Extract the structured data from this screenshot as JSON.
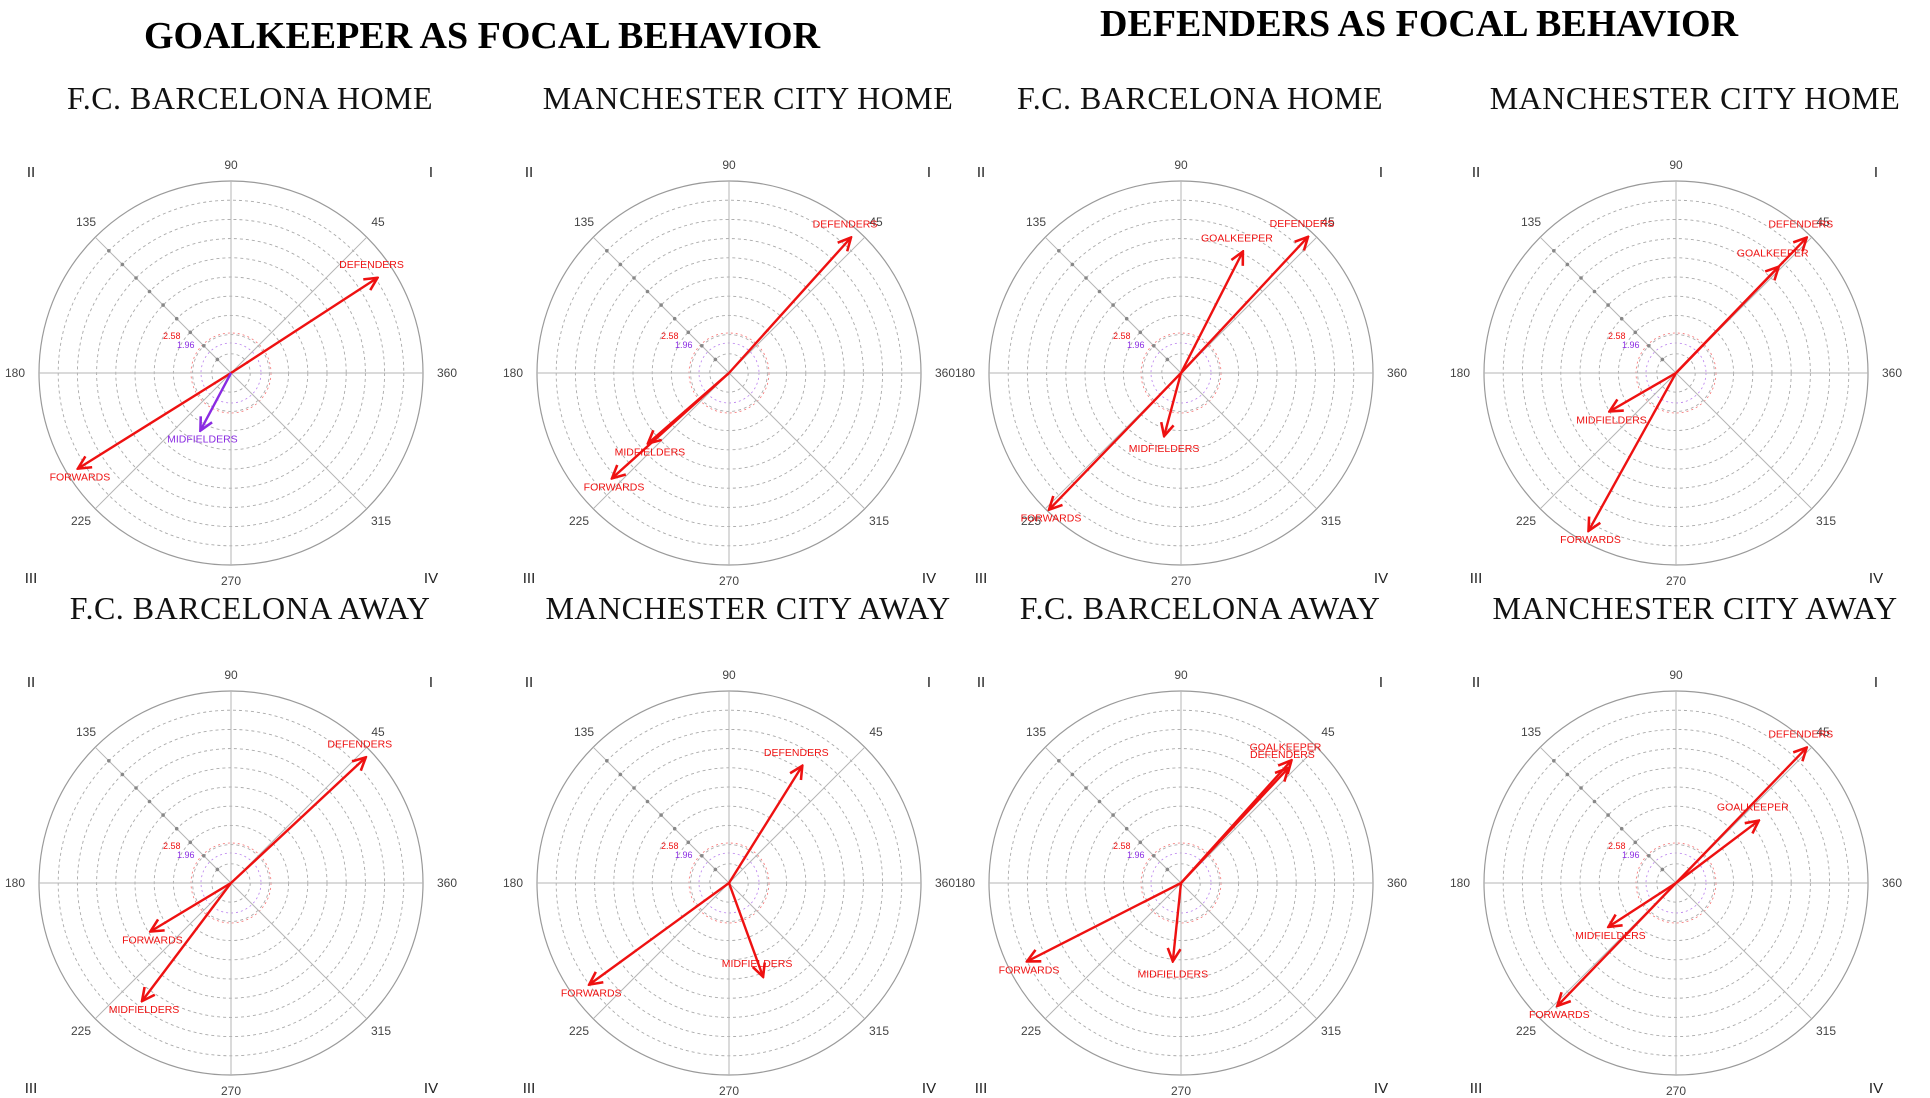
{
  "section_titles": {
    "left": "GOALKEEPER AS FOCAL BEHAVIOR",
    "right": "DEFENDERS AS FOCAL BEHAVIOR"
  },
  "colors": {
    "significant": "#ee1111",
    "nonsignificant": "#8a2be2",
    "circle": "#9a9a9a",
    "dotted": "#aaaaaa",
    "ring196": "#8a2be2",
    "ring258": "#ee1111"
  },
  "axis_angle_labels": [
    "90",
    "45",
    "180",
    "360",
    "225",
    "315",
    "270",
    "135"
  ],
  "quadrant_labels": [
    "I",
    "II",
    "III",
    "IV"
  ],
  "ring_labels": [
    "2.58",
    "1.96"
  ],
  "chart_data": [
    {
      "type": "polar",
      "group": "GOALKEEPER AS FOCAL BEHAVIOR",
      "title": "F.C. BARCELONA HOME",
      "vectors": [
        {
          "label": "DEFENDERS",
          "angle": 33,
          "length": 0.91,
          "significant": true
        },
        {
          "label": "FORWARDS",
          "angle": 212,
          "length": 0.94,
          "significant": true
        },
        {
          "label": "MIDFIELDERS",
          "angle": 242,
          "length": 0.34,
          "significant": false
        }
      ]
    },
    {
      "type": "polar",
      "group": "GOALKEEPER AS FOCAL BEHAVIOR",
      "title": "MANCHESTER CITY HOME",
      "vectors": [
        {
          "label": "DEFENDERS",
          "angle": 48,
          "length": 0.95,
          "significant": true
        },
        {
          "label": "MIDFIELDERS",
          "angle": 221,
          "length": 0.56,
          "significant": true
        },
        {
          "label": "FORWARDS",
          "angle": 222,
          "length": 0.82,
          "significant": true
        }
      ]
    },
    {
      "type": "polar",
      "group": "DEFENDERS AS FOCAL BEHAVIOR",
      "title": "F.C. BARCELONA HOME",
      "vectors": [
        {
          "label": "GOALKEEPER",
          "angle": 63,
          "length": 0.71,
          "significant": true
        },
        {
          "label": "DEFENDERS",
          "angle": 47,
          "length": 0.97,
          "significant": true
        },
        {
          "label": "MIDFIELDERS",
          "angle": 255,
          "length": 0.34,
          "significant": true
        },
        {
          "label": "FORWARDS",
          "angle": 226,
          "length": 0.99,
          "significant": true
        }
      ]
    },
    {
      "type": "polar",
      "group": "DEFENDERS AS FOCAL BEHAVIOR",
      "title": "MANCHESTER CITY HOME",
      "vectors": [
        {
          "label": "DEFENDERS",
          "angle": 46,
          "length": 0.98,
          "significant": true
        },
        {
          "label": "GOALKEEPER",
          "angle": 46,
          "length": 0.77,
          "significant": true
        },
        {
          "label": "MIDFIELDERS",
          "angle": 210,
          "length": 0.4,
          "significant": true
        },
        {
          "label": "FORWARDS",
          "angle": 241,
          "length": 0.94,
          "significant": true
        }
      ]
    },
    {
      "type": "polar",
      "group": "GOALKEEPER AS FOCAL BEHAVIOR",
      "title": "F.C. BARCELONA AWAY",
      "vectors": [
        {
          "label": "DEFENDERS",
          "angle": 43,
          "length": 0.96,
          "significant": true
        },
        {
          "label": "FORWARDS",
          "angle": 211,
          "length": 0.49,
          "significant": true
        },
        {
          "label": "MIDFIELDERS",
          "angle": 233,
          "length": 0.77,
          "significant": true
        }
      ]
    },
    {
      "type": "polar",
      "group": "GOALKEEPER AS FOCAL BEHAVIOR",
      "title": "MANCHESTER CITY AWAY",
      "vectors": [
        {
          "label": "DEFENDERS",
          "angle": 58,
          "length": 0.72,
          "significant": true
        },
        {
          "label": "MIDFIELDERS",
          "angle": 290,
          "length": 0.52,
          "significant": true
        },
        {
          "label": "FORWARDS",
          "angle": 216,
          "length": 0.9,
          "significant": true
        }
      ]
    },
    {
      "type": "polar",
      "group": "DEFENDERS AS FOCAL BEHAVIOR",
      "title": "F.C. BARCELONA AWAY",
      "vectors": [
        {
          "label": "GOALKEEPER",
          "angle": 48,
          "length": 0.86,
          "significant": true
        },
        {
          "label": "DEFENDERS",
          "angle": 47,
          "length": 0.82,
          "significant": true
        },
        {
          "label": "MIDFIELDERS",
          "angle": 264,
          "length": 0.41,
          "significant": true
        },
        {
          "label": "FORWARDS",
          "angle": 207,
          "length": 0.9,
          "significant": true
        }
      ]
    },
    {
      "type": "polar",
      "group": "DEFENDERS AS FOCAL BEHAVIOR",
      "title": "MANCHESTER CITY AWAY",
      "vectors": [
        {
          "label": "DEFENDERS",
          "angle": 46,
          "length": 0.98,
          "significant": true
        },
        {
          "label": "GOALKEEPER",
          "angle": 37,
          "length": 0.54,
          "significant": true
        },
        {
          "label": "MIDFIELDERS",
          "angle": 213,
          "length": 0.42,
          "significant": true
        },
        {
          "label": "FORWARDS",
          "angle": 226,
          "length": 0.89,
          "significant": true
        }
      ]
    }
  ]
}
